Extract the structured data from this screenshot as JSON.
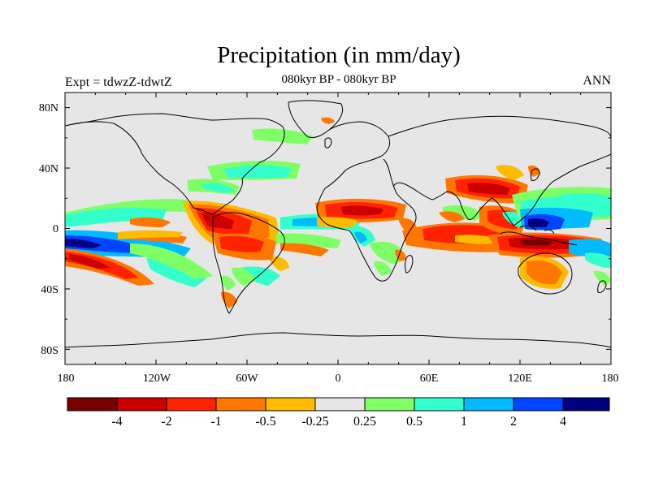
{
  "figure": {
    "title": "Precipitation (in mm/day)",
    "subtitle": "080kyr BP - 080kyr BP",
    "left_label": "Expt = tdwzZ-tdwtZ",
    "right_label": "ANN"
  },
  "map": {
    "projection": "cylindrical equidistant",
    "field": "precipitation difference",
    "units": "mm/day",
    "lon_range": [
      -180,
      180
    ],
    "lat_range": [
      -90,
      90
    ],
    "background_color": "#e6e6e6",
    "coastline_color": "#000000",
    "lon_ticks": [
      "180",
      "120W",
      "60W",
      "0",
      "60E",
      "120E",
      "180"
    ],
    "lat_ticks": [
      "80N",
      "40N",
      "0",
      "40S",
      "80S"
    ]
  },
  "colorbar": {
    "colors": [
      "#7a0000",
      "#cc0000",
      "#ff2200",
      "#ff7700",
      "#ffbb00",
      "#e6e6e6",
      "#7fff66",
      "#33ffcc",
      "#00bbff",
      "#0044ff",
      "#000080"
    ],
    "labels": [
      "-4",
      "-2",
      "-1",
      "-0.5",
      "-0.25",
      "0.25",
      "0.5",
      "1",
      "2",
      "4"
    ]
  },
  "anomaly_regions": [
    {
      "name": "south-pacific-wet",
      "color": "#00bbff",
      "lon": -160,
      "lat": -8
    },
    {
      "name": "south-pacific-dry",
      "color": "#ff2200",
      "lon": -160,
      "lat": -22
    },
    {
      "name": "tropical-atlantic-dry",
      "color": "#ff2200",
      "lon": -55,
      "lat": 2
    },
    {
      "name": "equatorial-atlantic-wet",
      "color": "#33ffcc",
      "lon": -10,
      "lat": 2
    },
    {
      "name": "sahel-dry",
      "color": "#ff2200",
      "lon": 10,
      "lat": 12
    },
    {
      "name": "indian-ocean-dry",
      "color": "#ff7700",
      "lon": 75,
      "lat": -4
    },
    {
      "name": "maritime-continent-wet",
      "color": "#0044ff",
      "lon": 140,
      "lat": 2
    },
    {
      "name": "north-indian-ocean-dry",
      "color": "#ff2200",
      "lon": 100,
      "lat": 20
    }
  ]
}
